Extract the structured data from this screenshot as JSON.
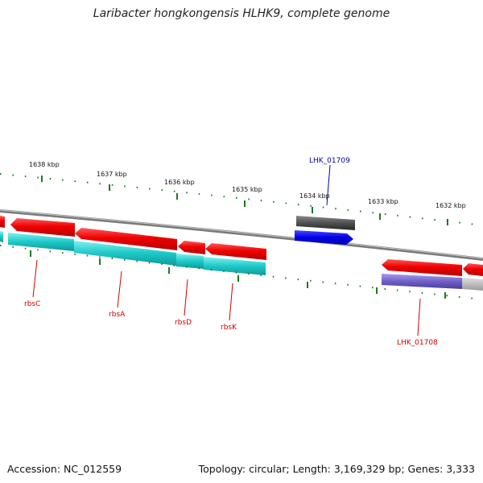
{
  "title": "Laribacter hongkongensis HLHK9, complete genome",
  "footer": {
    "accession": "Accession: NC_012559",
    "summary": "Topology: circular; Length: 3,169,329 bp; Genes: 3,333"
  },
  "ruler": {
    "ticks": [
      "1638 kbp",
      "1637 kbp",
      "1636 kbp",
      "1635 kbp",
      "1634 kbp",
      "1633 kbp",
      "1632 kbp"
    ],
    "tick_color": "#1a7a1a"
  },
  "genes": {
    "labels": [
      "rbsC",
      "rbsA",
      "rbsD",
      "rbsK",
      "LHK_01708",
      "LHK_01709"
    ]
  },
  "colors": {
    "backbone": "#808080",
    "cds": "#e00000",
    "protein": "#1ec8c8",
    "blue_cds": "#0000e8",
    "dark_cds": "#505050",
    "purple_feature": "#7060c8",
    "grey_feature": "#b8b8b8",
    "label_red": "#cc0000",
    "label_blue": "#0000aa"
  }
}
